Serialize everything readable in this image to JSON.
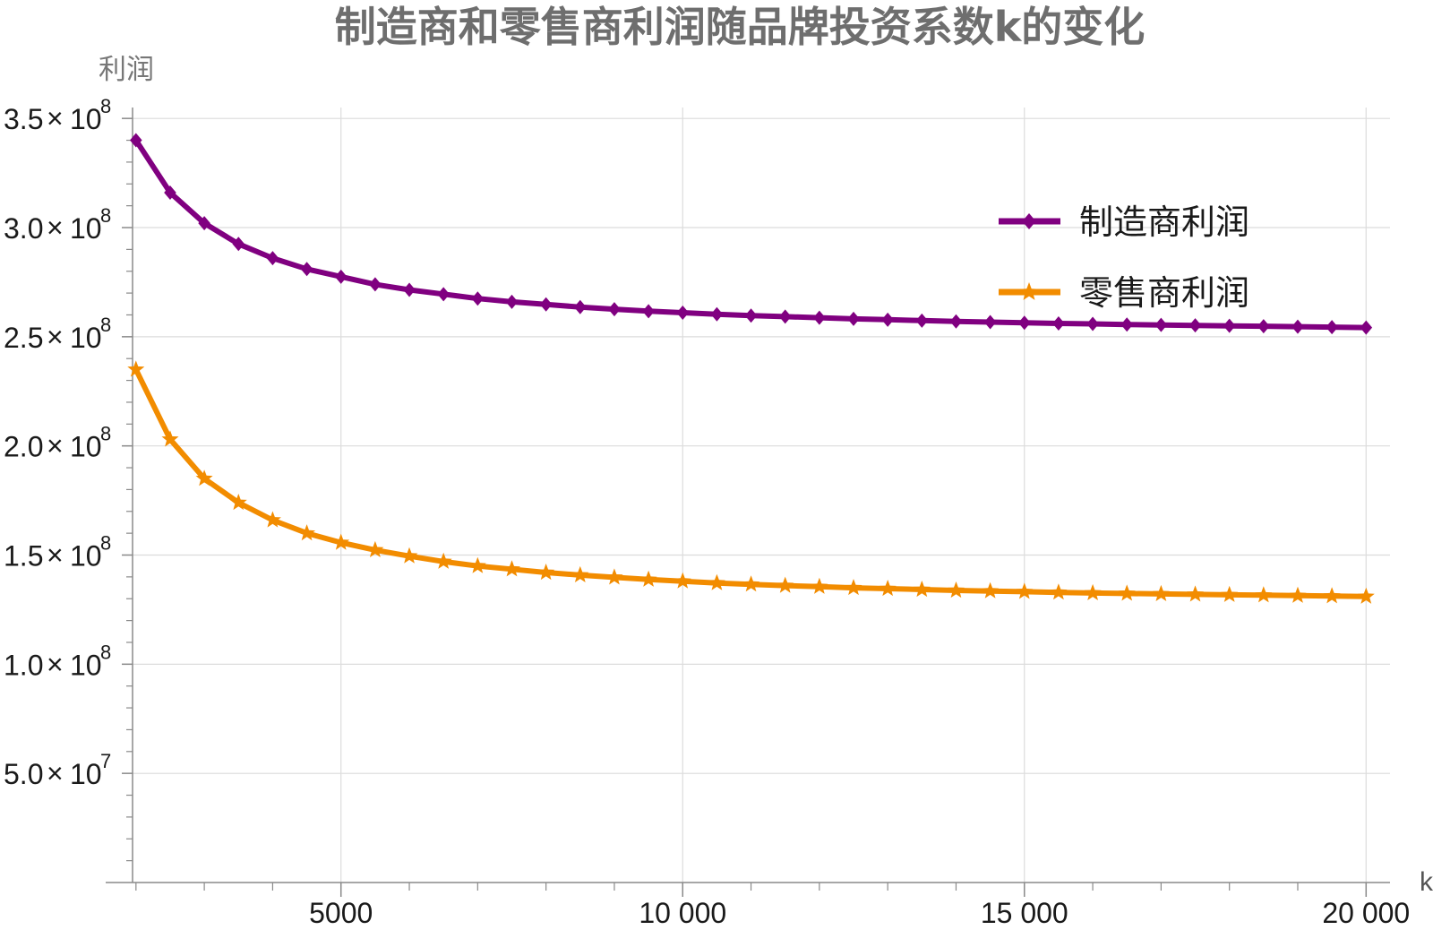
{
  "chart_data": {
    "type": "line",
    "title": "制造商和零售商利润随品牌投资系数k的变化",
    "xlabel": "k",
    "ylabel": "利润",
    "xlim": [
      1950,
      20350
    ],
    "ylim": [
      0,
      355000000
    ],
    "x_ticks": [
      {
        "value": 5000,
        "label": "5000"
      },
      {
        "value": 10000,
        "label": "10 000"
      },
      {
        "value": 15000,
        "label": "15 000"
      },
      {
        "value": 20000,
        "label": "20 000"
      }
    ],
    "y_ticks": [
      {
        "value": 50000000,
        "mantissa": "5.0",
        "exp": "7"
      },
      {
        "value": 100000000,
        "mantissa": "1.0",
        "exp": "8"
      },
      {
        "value": 150000000,
        "mantissa": "1.5",
        "exp": "8"
      },
      {
        "value": 200000000,
        "mantissa": "2.0",
        "exp": "8"
      },
      {
        "value": 250000000,
        "mantissa": "2.5",
        "exp": "8"
      },
      {
        "value": 300000000,
        "mantissa": "3.0",
        "exp": "8"
      },
      {
        "value": 350000000,
        "mantissa": "3.5",
        "exp": "8"
      }
    ],
    "grid": true,
    "legend_position": "right",
    "x": [
      2000,
      2500,
      3000,
      3500,
      4000,
      4500,
      5000,
      5500,
      6000,
      6500,
      7000,
      7500,
      8000,
      8500,
      9000,
      9500,
      10000,
      10500,
      11000,
      11500,
      12000,
      12500,
      13000,
      13500,
      14000,
      14500,
      15000,
      15500,
      16000,
      16500,
      17000,
      17500,
      18000,
      18500,
      19000,
      19500,
      20000
    ],
    "series": [
      {
        "name": "制造商利润",
        "color": "#800080",
        "marker": "diamond",
        "values": [
          340000000,
          316000000,
          302000000,
          292500000,
          286000000,
          281000000,
          277500000,
          274000000,
          271500000,
          269500000,
          267500000,
          266000000,
          264800000,
          263600000,
          262600000,
          261700000,
          261000000,
          260300000,
          259700000,
          259200000,
          258700000,
          258200000,
          257800000,
          257400000,
          257000000,
          256700000,
          256400000,
          256100000,
          255900000,
          255600000,
          255400000,
          255200000,
          255000000,
          254800000,
          254600000,
          254400000,
          254200000
        ]
      },
      {
        "name": "零售商利润",
        "color": "#f28c00",
        "marker": "star",
        "values": [
          235000000,
          203000000,
          185000000,
          174000000,
          166000000,
          160000000,
          155700000,
          152300000,
          149500000,
          147000000,
          145000000,
          143500000,
          142000000,
          140800000,
          139800000,
          138800000,
          138000000,
          137200000,
          136600000,
          136000000,
          135500000,
          135000000,
          134600000,
          134200000,
          133800000,
          133500000,
          133200000,
          132900000,
          132600000,
          132400000,
          132200000,
          132000000,
          131800000,
          131600000,
          131400000,
          131200000,
          131000000
        ]
      }
    ]
  }
}
